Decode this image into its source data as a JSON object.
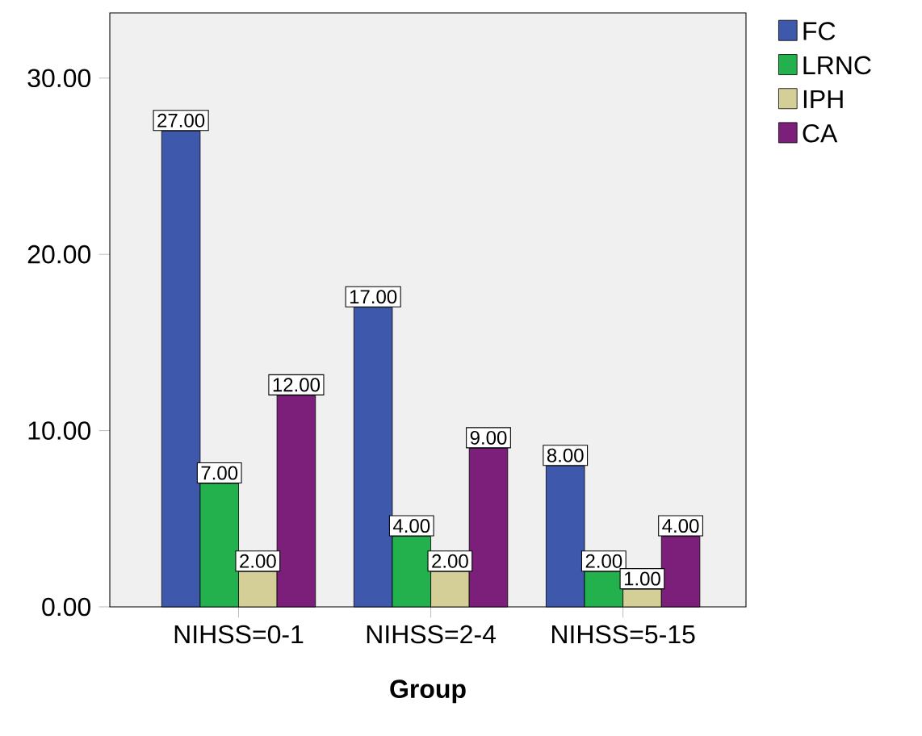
{
  "chart_data": {
    "type": "bar",
    "xlabel": "Group",
    "categories": [
      "NIHSS=0-1",
      "NIHSS=2-4",
      "NIHSS=5-15"
    ],
    "series": [
      {
        "name": "FC",
        "color": "#3e58ac",
        "values": [
          27,
          17,
          8
        ],
        "value_labels": [
          "27.00",
          "17.00",
          "8.00"
        ]
      },
      {
        "name": "LRNC",
        "color": "#22b14c",
        "values": [
          7,
          4,
          2
        ],
        "value_labels": [
          "7.00",
          "4.00",
          "2.00"
        ]
      },
      {
        "name": "IPH",
        "color": "#d4cf96",
        "values": [
          2,
          2,
          1
        ],
        "value_labels": [
          "2.00",
          "2.00",
          "1.00"
        ]
      },
      {
        "name": "CA",
        "color": "#7b1f7a",
        "values": [
          12,
          9,
          4
        ],
        "value_labels": [
          "12.00",
          "9.00",
          "4.00"
        ]
      }
    ],
    "ylim": [
      0,
      33.7
    ],
    "yticks": [
      {
        "value": 0,
        "label": "0.00"
      },
      {
        "value": 10,
        "label": "10.00"
      },
      {
        "value": 20,
        "label": "20.00"
      },
      {
        "value": 30,
        "label": "30.00"
      }
    ],
    "legend": "top right",
    "grid": false
  }
}
